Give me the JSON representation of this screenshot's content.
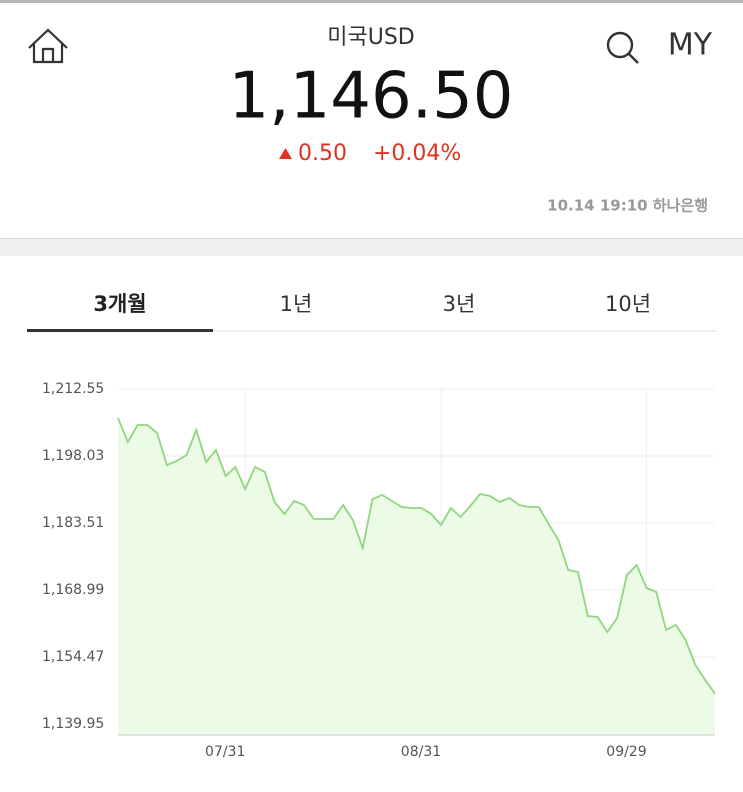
{
  "header": {
    "title": "미국USD",
    "menu": "MY",
    "price": "1,146.50",
    "change": "0.50",
    "change_percent": "+0.04%",
    "timestamp": "10.14 19:10 하나은행"
  },
  "tabs": [
    "3개월",
    "1년",
    "3년",
    "10년"
  ],
  "chart_data": {
    "type": "area",
    "color": "#8fd67f",
    "fill": "#ebfbe6",
    "grid": true,
    "categories": [
      null,
      null,
      null,
      null,
      null,
      null,
      null,
      null,
      null,
      null,
      null,
      null,
      null,
      "07/31",
      null,
      null,
      null,
      null,
      null,
      null,
      null,
      null,
      null,
      null,
      null,
      null,
      null,
      null,
      null,
      null,
      null,
      null,
      null,
      "08/31",
      null,
      null,
      null,
      null,
      null,
      null,
      null,
      null,
      null,
      null,
      null,
      null,
      null,
      null,
      null,
      null,
      null,
      null,
      null,
      null,
      "09/29",
      null,
      null,
      null,
      null,
      null,
      null,
      null
    ],
    "values": [
      1206.27,
      1201.06,
      1204.75,
      1204.75,
      1203.01,
      1196.08,
      1196.95,
      1198.25,
      1203.66,
      1196.73,
      1199.33,
      1193.7,
      1195.65,
      1190.88,
      1195.65,
      1194.56,
      1188.06,
      1185.46,
      1188.28,
      1187.41,
      1184.38,
      1184.38,
      1184.38,
      1187.41,
      1184.16,
      1178.09,
      1188.71,
      1189.58,
      1188.28,
      1186.98,
      1186.76,
      1186.76,
      1185.46,
      1183.08,
      1186.76,
      1184.81,
      1187.2,
      1189.8,
      1189.36,
      1188.06,
      1188.93,
      1187.41,
      1186.98,
      1186.98,
      1183.29,
      1179.83,
      1173.33,
      1172.89,
      1163.36,
      1163.14,
      1159.89,
      1162.92,
      1172.24,
      1174.41,
      1169.42,
      1168.56,
      1160.32,
      1161.41,
      1158.16,
      1152.74,
      1149.49,
      1146.5
    ],
    "ylim": [
      1137.57,
      1212.55
    ],
    "yticks": [
      {
        "value": 1212.55,
        "label": "1,212.55"
      },
      {
        "value": 1198.03,
        "label": "1,198.03"
      },
      {
        "value": 1183.51,
        "label": "1,183.51"
      },
      {
        "value": 1168.99,
        "label": "1,168.99"
      },
      {
        "value": 1154.47,
        "label": "1,154.47"
      },
      {
        "value": 1139.95,
        "label": "1,139.95"
      }
    ]
  }
}
